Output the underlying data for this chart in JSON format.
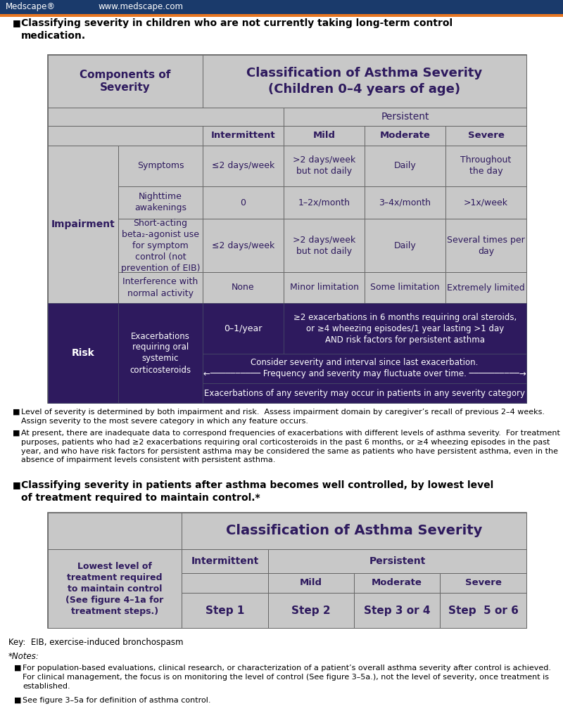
{
  "bg_color": "#ffffff",
  "header_bar_color": "#1a3a6b",
  "header_bar_orange": "#e87722",
  "table_gray": "#c8c8c8",
  "table_dark_purple": "#2e1a5e",
  "table_header_text": "#2e1a5e",
  "table_body_text": "#2e1a5e",
  "components_label": "Components of\nSeverity",
  "impairment_label": "Impairment",
  "risk_label": "Risk",
  "persistent_label": "Persistent",
  "intermittent_label": "Intermittent",
  "mild_label": "Mild",
  "moderate_label": "Moderate",
  "severe_label": "Severe",
  "table1_header_line1": "Classification of Asthma Severity",
  "table1_header_line2": "(Children 0–4 years of age)",
  "table2_header": "Classification of Asthma Severity",
  "key_text": "Key:  EIB, exercise-induced bronchospasm",
  "notes_header": "*Notes:"
}
